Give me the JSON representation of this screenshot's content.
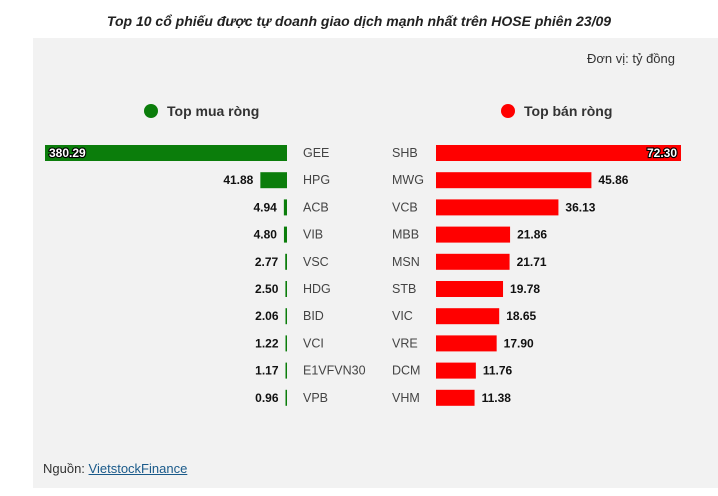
{
  "title": "Top 10 cổ phiếu được tự doanh giao dịch mạnh nhất trên HOSE phiên 23/09",
  "unit": "Đơn vị: tỷ đồng",
  "legend": {
    "buy_label": "Top mua ròng",
    "sell_label": "Top bán ròng"
  },
  "colors": {
    "buy": "#0b7d0b",
    "sell": "#ff0000",
    "panel": "#f2f2f2"
  },
  "source": {
    "prefix": "Nguồn: ",
    "link_text": "VietstockFinance"
  },
  "chart_data": [
    {
      "type": "bar",
      "orientation": "horizontal",
      "direction": "right-to-left",
      "series_name": "Top mua ròng",
      "categories": [
        "GEE",
        "HPG",
        "ACB",
        "VIB",
        "VSC",
        "HDG",
        "BID",
        "VCI",
        "E1VFVN30",
        "VPB"
      ],
      "values": [
        380.29,
        41.88,
        4.94,
        4.8,
        2.77,
        2.5,
        2.06,
        1.22,
        1.17,
        0.96
      ],
      "value_labels": [
        "380.29",
        "41.88",
        "4.94",
        "4.80",
        "2.77",
        "2.50",
        "2.06",
        "1.22",
        "1.17",
        "0.96"
      ],
      "xlim": [
        0,
        380.29
      ]
    },
    {
      "type": "bar",
      "orientation": "horizontal",
      "direction": "left-to-right",
      "series_name": "Top bán ròng",
      "categories": [
        "SHB",
        "MWG",
        "VCB",
        "MBB",
        "MSN",
        "STB",
        "VIC",
        "VRE",
        "DCM",
        "VHM"
      ],
      "values": [
        72.3,
        45.86,
        36.13,
        21.86,
        21.71,
        19.78,
        18.65,
        17.9,
        11.76,
        11.38
      ],
      "value_labels": [
        "72.30",
        "45.86",
        "36.13",
        "21.86",
        "21.71",
        "19.78",
        "18.65",
        "17.90",
        "11.76",
        "11.38"
      ],
      "xlim": [
        0,
        72.3
      ]
    }
  ]
}
